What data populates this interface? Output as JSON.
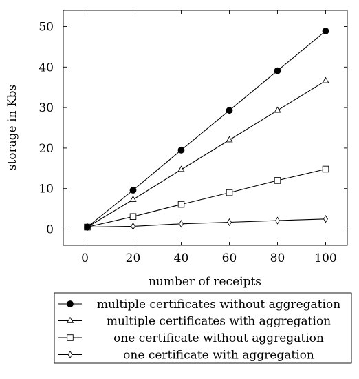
{
  "chart_data": {
    "type": "line",
    "xlabel": "number of receipts",
    "ylabel": "storage in Kbs",
    "xlim": [
      -9,
      109
    ],
    "ylim": [
      -4,
      54
    ],
    "x_ticks": [
      0,
      20,
      40,
      60,
      80,
      100
    ],
    "y_ticks": [
      0,
      10,
      20,
      30,
      40,
      50
    ],
    "grid": false,
    "legend_position": "below",
    "series": [
      {
        "name": "multiple certificates without aggregation",
        "marker": "filled-circle",
        "x": [
          1,
          20,
          40,
          60,
          80,
          100
        ],
        "values": [
          0.5,
          9.6,
          19.5,
          29.3,
          39.1,
          48.9
        ]
      },
      {
        "name": "multiple certificates with aggregation",
        "marker": "triangle",
        "x": [
          1,
          20,
          40,
          60,
          80,
          100
        ],
        "values": [
          0.5,
          7.3,
          14.7,
          22.0,
          29.3,
          36.6
        ]
      },
      {
        "name": "one certificate without aggregation",
        "marker": "square",
        "x": [
          1,
          20,
          40,
          60,
          80,
          100
        ],
        "values": [
          0.5,
          3.1,
          6.1,
          9.0,
          12.0,
          14.8
        ]
      },
      {
        "name": "one certificate with aggregation",
        "marker": "diamond",
        "x": [
          1,
          20,
          40,
          60,
          80,
          100
        ],
        "values": [
          0.5,
          0.7,
          1.3,
          1.7,
          2.1,
          2.5
        ]
      }
    ]
  }
}
